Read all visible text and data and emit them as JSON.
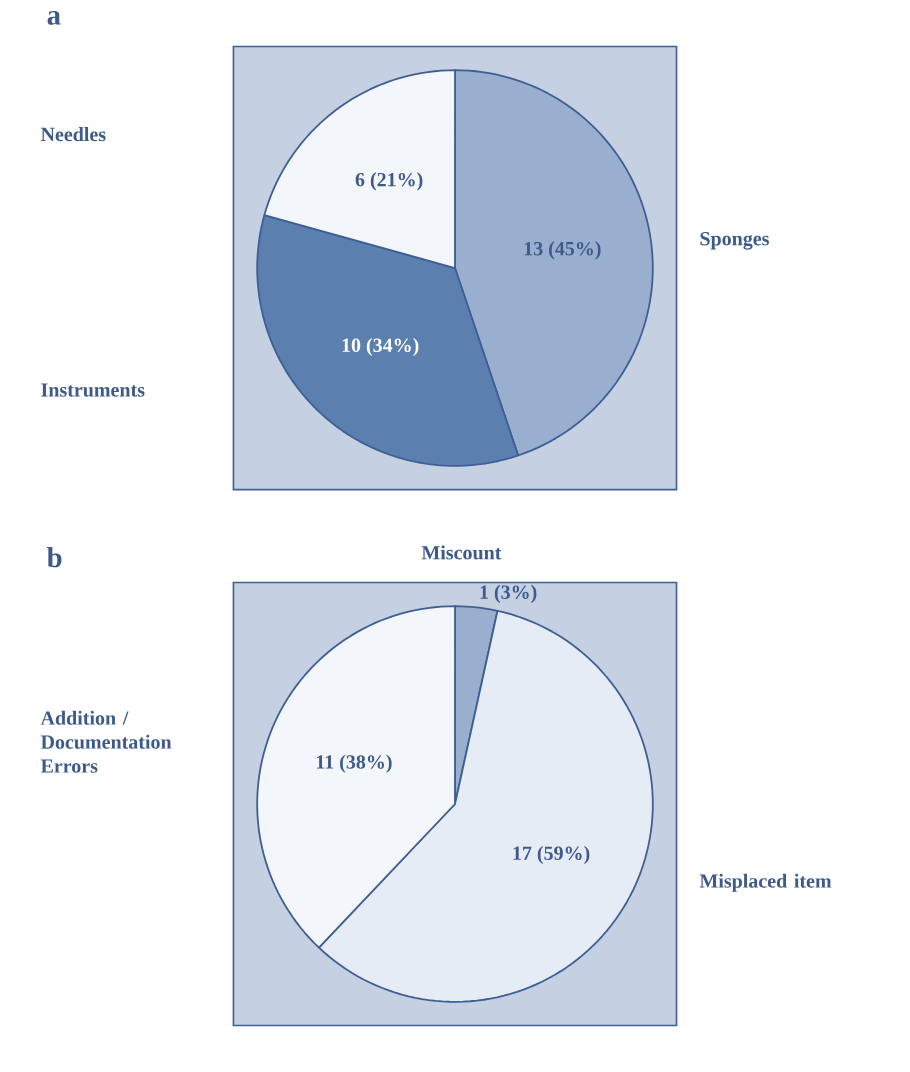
{
  "chart_data": [
    {
      "type": "pie",
      "title": "a",
      "categories": [
        "Sponges",
        "Instruments",
        "Needles"
      ],
      "values": [
        13,
        10,
        6
      ],
      "value_labels": [
        "13 (45%)",
        "10 (34%)",
        "6 (21%)"
      ],
      "colors": [
        "#9aafcf",
        "#5b7fae",
        "#f3f6fb"
      ]
    },
    {
      "type": "pie",
      "title": "b",
      "categories": [
        "Miscount",
        "Misplaced item",
        "Addition / Documentation Errors"
      ],
      "values": [
        1,
        17,
        11
      ],
      "value_labels": [
        "1 (3%)",
        "17 (59%)",
        "11 (38%)"
      ],
      "colors": [
        "#9aafcf",
        "#e6ecf5",
        "#f3f6fb"
      ]
    }
  ]
}
